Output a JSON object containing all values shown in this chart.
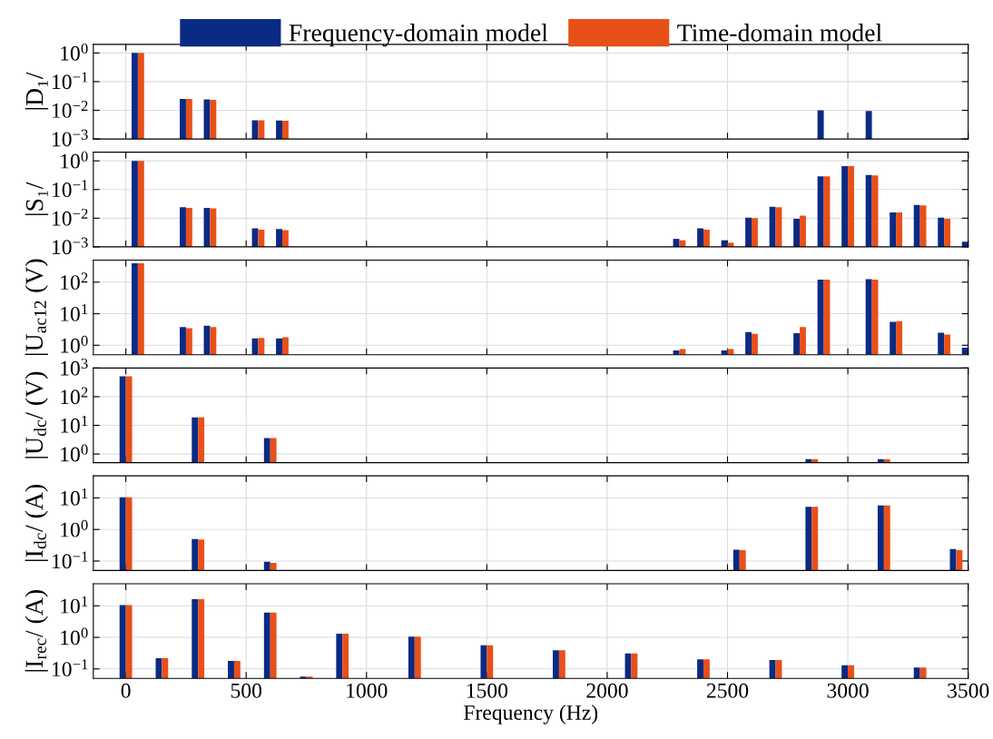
{
  "chart_data": [
    {
      "type": "bar",
      "ylabel": "|D₁/",
      "log": true,
      "grid": true,
      "legend": "top",
      "tick_labels": "y",
      "x": [
        50,
        250,
        350,
        550,
        650,
        2900,
        3100
      ],
      "xlim": [
        -135,
        3500
      ],
      "xticks": [
        0,
        500,
        1000,
        1500,
        2000,
        2500,
        3000,
        3500
      ],
      "ylim": [
        0.001,
        2
      ],
      "yticks": [
        {
          "value": 0.001,
          "label": "10$^{−3}$"
        },
        {
          "value": 0.01,
          "label": "10$^{−2}$"
        },
        {
          "value": 0.1,
          "label": "10$^{−1}$"
        },
        {
          "value": 1,
          "label": "10$^{0}$"
        }
      ],
      "series": [
        {
          "name": "Frequency-domain model",
          "color": "#0a2a83",
          "values": [
            1.0,
            0.025,
            0.024,
            0.0045,
            0.0044,
            0.01,
            0.0095
          ]
        },
        {
          "name": "Time-domain model",
          "color": "#e8501a",
          "values": [
            1.0,
            0.025,
            0.023,
            0.0045,
            0.0043,
            null,
            null
          ]
        }
      ]
    },
    {
      "type": "bar",
      "ylabel": "|S₁/",
      "log": true,
      "grid": true,
      "tick_labels": "y",
      "x": [
        50,
        250,
        350,
        550,
        650,
        2300,
        2400,
        2500,
        2600,
        2700,
        2800,
        2900,
        3000,
        3100,
        3200,
        3300,
        3400,
        3500
      ],
      "xlim": [
        -135,
        3500
      ],
      "xticks": [
        0,
        500,
        1000,
        1500,
        2000,
        2500,
        3000,
        3500
      ],
      "ylim": [
        0.001,
        2
      ],
      "yticks": [
        {
          "value": 0.001,
          "label": "10$^{−3}$"
        },
        {
          "value": 0.01,
          "label": "10$^{−2}$"
        },
        {
          "value": 0.1,
          "label": "10$^{−1}$"
        },
        {
          "value": 1,
          "label": "10$^{0}$"
        }
      ],
      "series": [
        {
          "color": "#0a2a83",
          "values": [
            1.0,
            0.024,
            0.023,
            0.0044,
            0.0042,
            0.0019,
            0.0044,
            0.0017,
            0.0105,
            0.025,
            0.0095,
            0.29,
            0.66,
            0.32,
            0.016,
            0.029,
            0.0105,
            0.0015
          ]
        },
        {
          "color": "#e8501a",
          "values": [
            1.0,
            0.023,
            0.022,
            0.004,
            0.0038,
            0.0017,
            0.004,
            0.0014,
            0.01,
            0.024,
            0.0123,
            0.29,
            0.66,
            0.31,
            0.016,
            0.028,
            0.0095,
            null
          ]
        }
      ]
    },
    {
      "type": "bar",
      "ylabel": "|U$_{ac12}$ (V)",
      "log": true,
      "grid": true,
      "tick_labels": "y",
      "x": [
        50,
        250,
        350,
        550,
        650,
        2300,
        2500,
        2600,
        2800,
        2900,
        3100,
        3200,
        3400,
        3500
      ],
      "xlim": [
        -135,
        3500
      ],
      "xticks": [
        0,
        500,
        1000,
        1500,
        2000,
        2500,
        3000,
        3500
      ],
      "ylim": [
        0.5,
        500
      ],
      "yticks": [
        {
          "value": 1,
          "label": "10$^{0}$"
        },
        {
          "value": 10,
          "label": "10$^{1}$"
        },
        {
          "value": 100,
          "label": "10$^{2}$"
        }
      ],
      "series": [
        {
          "color": "#0a2a83",
          "values": [
            400,
            3.8,
            4.2,
            1.66,
            1.66,
            0.69,
            0.69,
            2.6,
            2.4,
            120,
            125,
            5.5,
            2.5,
            0.83
          ]
        },
        {
          "color": "#e8501a",
          "values": [
            400,
            3.5,
            3.8,
            1.7,
            1.8,
            0.76,
            0.76,
            2.3,
            3.8,
            120,
            120,
            5.8,
            2.2,
            null
          ]
        }
      ]
    },
    {
      "type": "bar",
      "ylabel": "|U$_{dc}$/ (V)",
      "log": true,
      "grid": true,
      "tick_labels": "y",
      "x": [
        0,
        300,
        600,
        2850,
        3150
      ],
      "xlim": [
        -135,
        3500
      ],
      "xticks": [
        0,
        500,
        1000,
        1500,
        2000,
        2500,
        3000,
        3500
      ],
      "ylim": [
        0.5,
        1000
      ],
      "yticks": [
        {
          "value": 1,
          "label": "10$^{0}$"
        },
        {
          "value": 10,
          "label": "10$^{1}$"
        },
        {
          "value": 100,
          "label": "10$^{2}$"
        },
        {
          "value": 1000,
          "label": "10$^{3}$"
        }
      ],
      "series": [
        {
          "color": "#0a2a83",
          "values": [
            510,
            19,
            3.6,
            0.66,
            0.66
          ]
        },
        {
          "color": "#e8501a",
          "values": [
            510,
            19,
            3.6,
            0.66,
            0.66
          ]
        }
      ]
    },
    {
      "type": "bar",
      "ylabel": "|I$_{dc}$/ (A)",
      "log": true,
      "grid": true,
      "tick_labels": "y",
      "x": [
        0,
        300,
        600,
        2550,
        2850,
        3150,
        3450
      ],
      "xlim": [
        -135,
        3500
      ],
      "xticks": [
        0,
        500,
        1000,
        1500,
        2000,
        2500,
        3000,
        3500
      ],
      "ylim": [
        0.05,
        50
      ],
      "yticks": [
        {
          "value": 0.1,
          "label": "10$^{−1}$"
        },
        {
          "value": 1,
          "label": "10$^{0}$"
        },
        {
          "value": 10,
          "label": "10$^{1}$"
        }
      ],
      "series": [
        {
          "color": "#0a2a83",
          "values": [
            10.5,
            0.5,
            0.095,
            0.23,
            5.2,
            5.8,
            0.24
          ]
        },
        {
          "color": "#e8501a",
          "values": [
            10.5,
            0.48,
            0.087,
            0.22,
            5.2,
            5.8,
            0.22
          ]
        }
      ]
    },
    {
      "type": "bar",
      "ylabel": "|I$_{rec}$/ (A)",
      "xlabel": "Frequency (Hz)",
      "log": true,
      "grid": true,
      "x": [
        0,
        150,
        300,
        450,
        600,
        750,
        900,
        1200,
        1500,
        1800,
        2100,
        2400,
        2700,
        3000,
        3300
      ],
      "xlim": [
        -135,
        3500
      ],
      "xticks": [
        0,
        500,
        1000,
        1500,
        2000,
        2500,
        3000,
        3500
      ],
      "ylim": [
        0.05,
        50
      ],
      "yticks": [
        {
          "value": 0.1,
          "label": "10$^{−1}$"
        },
        {
          "value": 1,
          "label": "10$^{0}$"
        },
        {
          "value": 10,
          "label": "10$^{1}$"
        }
      ],
      "series": [
        {
          "color": "#0a2a83",
          "values": [
            10.5,
            0.22,
            16.3,
            0.18,
            6.1,
            0.057,
            1.3,
            1.05,
            0.56,
            0.39,
            0.31,
            0.2,
            0.19,
            0.13,
            0.11
          ]
        },
        {
          "color": "#e8501a",
          "values": [
            10.5,
            0.22,
            16.3,
            0.18,
            6.1,
            0.057,
            1.3,
            1.05,
            0.56,
            0.39,
            0.31,
            0.2,
            0.19,
            0.13,
            0.11
          ]
        }
      ]
    }
  ]
}
